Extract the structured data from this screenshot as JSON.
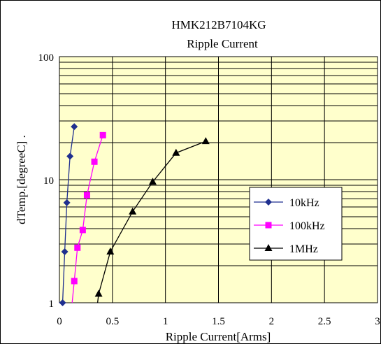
{
  "chart_data": {
    "type": "line",
    "title": "HMK212B7104KG",
    "subtitle": "Ripple Current",
    "xlabel": "Ripple Current[Arms]",
    "ylabel": "dTemp.[degreeC]  .",
    "xlim": [
      0,
      3
    ],
    "ylim": [
      1,
      100
    ],
    "yscale": "log",
    "xticks": [
      "0",
      "0.5",
      "1",
      "1.5",
      "2",
      "2.5",
      "3"
    ],
    "yticks": [
      "1",
      "10",
      "100"
    ],
    "grid": true,
    "plot_background": "#ffffcc",
    "legend_position": "right",
    "series": [
      {
        "name": "10kHz",
        "color": "#1f2f8f",
        "marker": "diamond",
        "points": [
          [
            0.03,
            1.0
          ],
          [
            0.05,
            2.6
          ],
          [
            0.07,
            6.5
          ],
          [
            0.1,
            15.5
          ],
          [
            0.14,
            27.0
          ]
        ]
      },
      {
        "name": "100kHz",
        "color": "#ff00ff",
        "marker": "square",
        "line_start": [
          0.12,
          0.93
        ],
        "points": [
          [
            0.14,
            1.5
          ],
          [
            0.17,
            2.8
          ],
          [
            0.22,
            3.9
          ],
          [
            0.26,
            7.5
          ],
          [
            0.33,
            14.0
          ],
          [
            0.41,
            23.0
          ]
        ]
      },
      {
        "name": "1MHz",
        "color": "#000000",
        "marker": "triangle",
        "line_start": [
          0.36,
          0.96
        ],
        "points": [
          [
            0.37,
            1.18
          ],
          [
            0.48,
            2.6
          ],
          [
            0.69,
            5.5
          ],
          [
            0.88,
            9.6
          ],
          [
            1.1,
            16.5
          ],
          [
            1.38,
            20.5
          ]
        ]
      }
    ]
  }
}
